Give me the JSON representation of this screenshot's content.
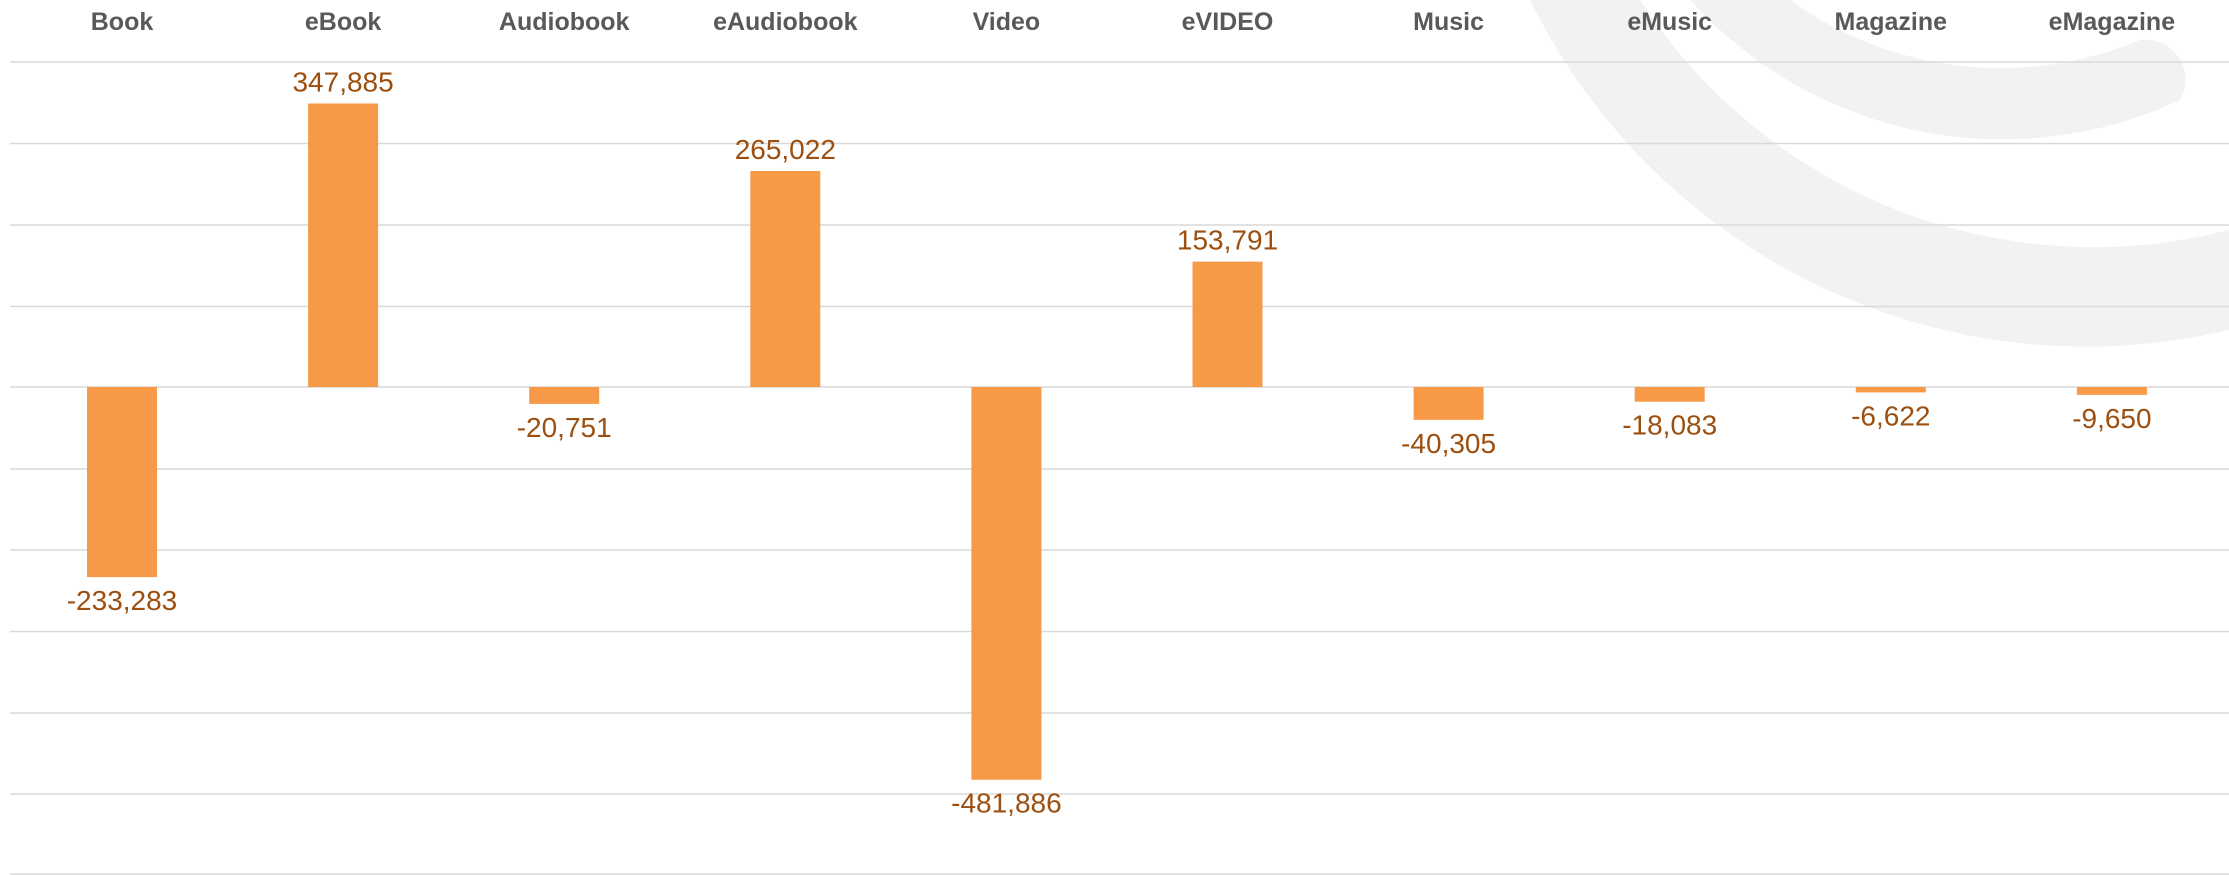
{
  "chart_data": {
    "type": "bar",
    "categories": [
      "Book",
      "eBook",
      "Audiobook",
      "eAudiobook",
      "Video",
      "eVIDEO",
      "Music",
      "eMusic",
      "Magazine",
      "eMagazine"
    ],
    "values": [
      -233283,
      347885,
      -20751,
      265022,
      -481886,
      153791,
      -40305,
      -18083,
      -6622,
      -9650
    ],
    "value_labels": [
      "-233,283",
      "347,885",
      "-20,751",
      "265,022",
      "-481,886",
      "153,791",
      "-40,305",
      "-18,083",
      "-6,622",
      "-9,650"
    ],
    "title": "",
    "xlabel": "",
    "ylabel": "",
    "ylim": [
      -500000,
      400000
    ],
    "grid": true,
    "category_labels_position": "top",
    "colors": {
      "bar": "#f79a48",
      "value_label": "#9c4f0f",
      "category_label": "#595959",
      "gridline": "#d9d9d9",
      "watermark": "#f2f2f2"
    }
  }
}
